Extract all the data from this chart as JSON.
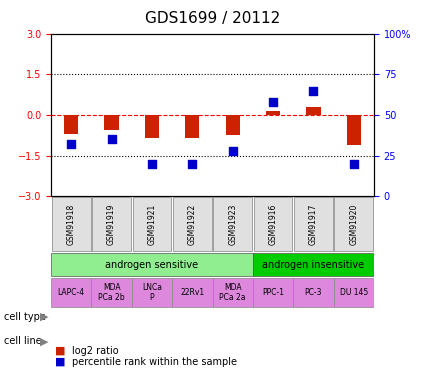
{
  "title": "GDS1699 / 20112",
  "samples": [
    "GSM91918",
    "GSM91919",
    "GSM91921",
    "GSM91922",
    "GSM91923",
    "GSM91916",
    "GSM91917",
    "GSM91920"
  ],
  "log2_ratio": [
    -0.7,
    -0.55,
    -0.85,
    -0.85,
    -0.75,
    0.15,
    0.3,
    -1.1
  ],
  "percentile_rank": [
    32,
    35,
    20,
    20,
    28,
    58,
    65,
    20
  ],
  "ylim_left": [
    -3,
    3
  ],
  "ylim_right": [
    0,
    100
  ],
  "yticks_left": [
    -3,
    -1.5,
    0,
    1.5,
    3
  ],
  "yticks_right": [
    0,
    25,
    50,
    75,
    100
  ],
  "cell_type_groups": [
    {
      "label": "androgen sensitive",
      "start": 0,
      "end": 5,
      "color": "#90ee90"
    },
    {
      "label": "androgen insensitive",
      "start": 5,
      "end": 8,
      "color": "#00cc00"
    }
  ],
  "cell_lines": [
    {
      "label": "LAPC-4",
      "start": 0,
      "end": 1
    },
    {
      "label": "MDA\nPCa 2b",
      "start": 1,
      "end": 2
    },
    {
      "label": "LNCa\nP",
      "start": 2,
      "end": 3
    },
    {
      "label": "22Rv1",
      "start": 3,
      "end": 4
    },
    {
      "label": "MDA\nPCa 2a",
      "start": 4,
      "end": 5
    },
    {
      "label": "PPC-1",
      "start": 5,
      "end": 6
    },
    {
      "label": "PC-3",
      "start": 6,
      "end": 7
    },
    {
      "label": "DU 145",
      "start": 7,
      "end": 8
    }
  ],
  "cell_line_color": "#dd88dd",
  "bar_color": "#cc2200",
  "dot_color": "#0000cc",
  "grid_color": "#000000",
  "label_fontsize": 7,
  "tick_fontsize": 7,
  "title_fontsize": 11
}
